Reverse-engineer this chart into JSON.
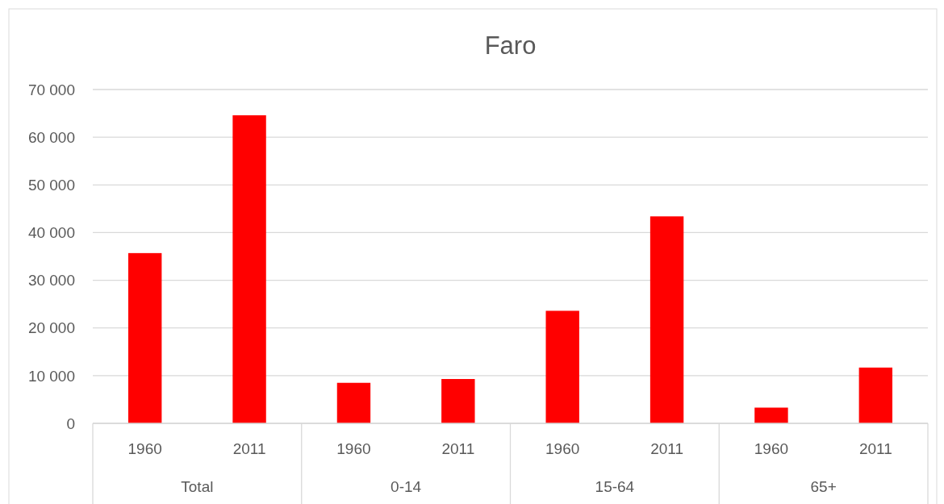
{
  "chart_data": {
    "type": "bar",
    "title": "Faro",
    "categories": [
      "1960",
      "2011",
      "1960",
      "2011",
      "1960",
      "2011",
      "1960",
      "2011"
    ],
    "values": [
      35700,
      64600,
      8500,
      9300,
      23600,
      43400,
      3300,
      11700
    ],
    "color": "#ff0000",
    "annotations": [
      "Total",
      "0-14",
      "15-64",
      "65+"
    ],
    "ylim": [
      0,
      70000
    ],
    "yticks": [
      {
        "value": 0,
        "label": "0"
      },
      {
        "value": 10000,
        "label": "10 000"
      },
      {
        "value": 20000,
        "label": "20 000"
      },
      {
        "value": 30000,
        "label": "30 000"
      },
      {
        "value": 40000,
        "label": "40 000"
      },
      {
        "value": 50000,
        "label": "50 000"
      },
      {
        "value": 60000,
        "label": "60 000"
      },
      {
        "value": 70000,
        "label": "70 000"
      }
    ],
    "grid": "y"
  }
}
